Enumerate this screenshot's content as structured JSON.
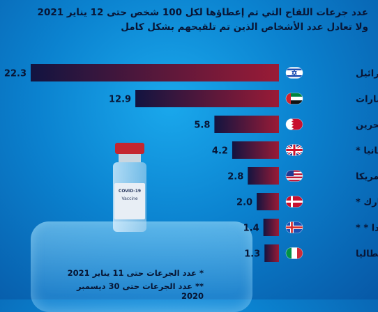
{
  "header": {
    "title_line1": "عدد جرعات اللقاح التي تم إعطاؤها لكل 100 شخص حتى 12 يناير 2021",
    "title_line2": "ولا تعادل عدد الأشخاص الذين تم تلقيحهم بشكل كامل"
  },
  "vial": {
    "line1": "COVID-19",
    "line2": "Vaccine"
  },
  "footnotes": [
    "* عدد الجرعات حتى 11 يناير 2021",
    "** عدد الجرعات حتى 30 ديسمبر 2020"
  ],
  "colors": {
    "bar_start": "#121440",
    "bar_end": "#9a1b36",
    "text": "#081636"
  },
  "chart_data": {
    "type": "bar",
    "orientation": "horizontal",
    "categories": [
      "إسرائيل",
      "الإمارات",
      "البحرين",
      "بريطانيا *",
      "أمريكا",
      "الدنمارك *",
      "أيسلندا * *",
      "إيطاليا"
    ],
    "values": [
      22.3,
      12.9,
      5.8,
      4.2,
      2.8,
      2.0,
      1.4,
      1.3
    ],
    "value_labels": [
      "22.3",
      "12.9",
      "5.8",
      "4.2",
      "2.8",
      "2.0",
      "1.4",
      "1.3"
    ],
    "flags": [
      "israel-flag",
      "uae-flag",
      "bahrain-flag",
      "uk-flag",
      "usa-flag",
      "denmark-flag",
      "iceland-flag",
      "italy-flag"
    ],
    "xlim": [
      0,
      22.3
    ],
    "grid": false,
    "legend": "none"
  }
}
